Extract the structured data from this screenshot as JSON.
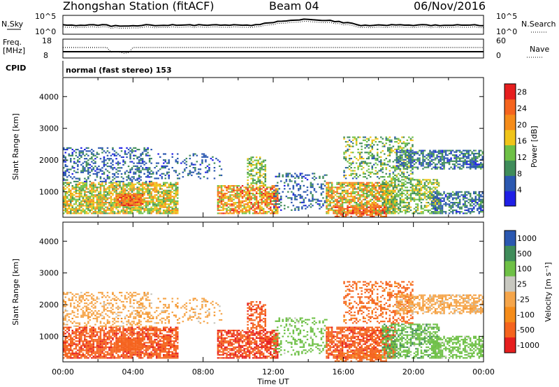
{
  "header": {
    "station": "Zhongshan Station (fitACF)",
    "beam": "Beam 04",
    "date": "06/Nov/2016"
  },
  "noise_panel": {
    "left_label": "N.Sky",
    "right_label": "N.Search",
    "left_ticks": [
      "10^5",
      "10^0"
    ],
    "right_ticks": [
      "10^5",
      "10^0"
    ]
  },
  "freq_panel": {
    "left_label": "Freq.",
    "left_unit": "[MHz]",
    "left_ticks": [
      "18",
      "8"
    ],
    "right_label": "Nave",
    "right_ticks": [
      "60",
      "0"
    ]
  },
  "cpid": {
    "label": "CPID",
    "value": "normal (fast stereo) 153"
  },
  "colors": {
    "power": [
      "#1f1fe6",
      "#2b58b0",
      "#3f8c5a",
      "#6ec046",
      "#f0c419",
      "#f58c1a",
      "#f5641e",
      "#e61e1e"
    ],
    "velocity": [
      "#e61e1e",
      "#f5641e",
      "#f58c1a",
      "#f5a54a",
      "#c8c8c0",
      "#6ec046",
      "#3f8c5a",
      "#2b58b0"
    ]
  },
  "chart_data": [
    {
      "type": "heatmap",
      "name": "power",
      "ylabel": "Slant Range [km]",
      "xlabel": "Time UT",
      "x_ticks": [
        "00:00",
        "04:00",
        "08:00",
        "12:00",
        "16:00",
        "20:00",
        "00:00"
      ],
      "y_ticks": [
        1000,
        2000,
        3000,
        4000
      ],
      "ylim": [
        200,
        4600
      ],
      "xlim_hours": [
        0,
        24
      ],
      "colorbar": {
        "label": "Power [dB]",
        "ticks": [
          4,
          8,
          12,
          16,
          20,
          24,
          28
        ],
        "range": [
          0,
          30
        ]
      }
    },
    {
      "type": "heatmap",
      "name": "velocity",
      "ylabel": "Slant Range [km]",
      "xlabel": "Time UT",
      "x_ticks": [
        "00:00",
        "04:00",
        "08:00",
        "12:00",
        "16:00",
        "20:00",
        "00:00"
      ],
      "y_ticks": [
        1000,
        2000,
        3000,
        4000
      ],
      "ylim": [
        200,
        4600
      ],
      "xlim_hours": [
        0,
        24
      ],
      "colorbar": {
        "label": "Velocity [m s⁻¹]",
        "ticks": [
          "1000",
          "500",
          "100",
          "25",
          "-25",
          "-100",
          "-500",
          "-1000"
        ]
      }
    }
  ],
  "xaxis_title": "Time UT"
}
